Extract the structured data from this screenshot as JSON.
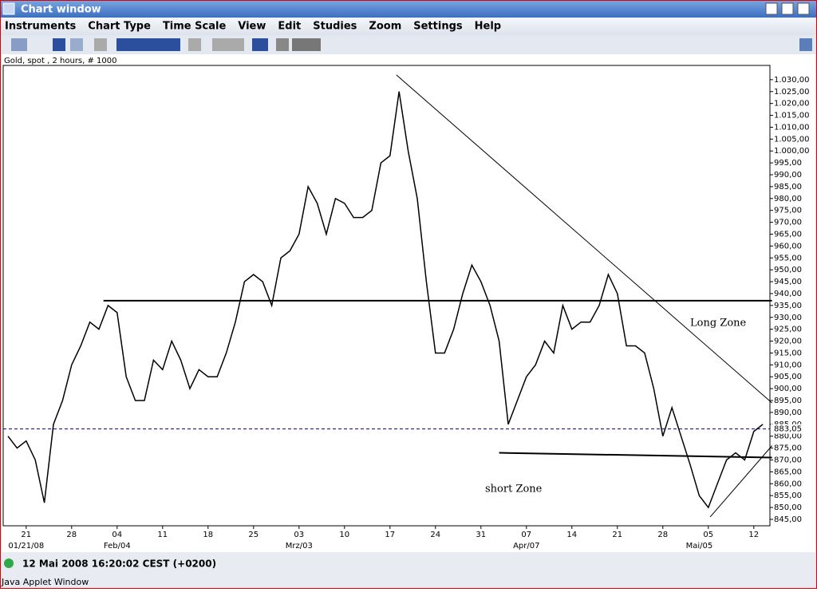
{
  "window": {
    "title": "Chart window",
    "menus": [
      "Instruments",
      "Chart Type",
      "Time Scale",
      "View",
      "Edit",
      "Studies",
      "Zoom",
      "Settings",
      "Help"
    ],
    "status": "12 Mai 2008 16:20:02  CEST (+0200)",
    "footer": "Java Applet Window"
  },
  "chart_data": {
    "type": "line",
    "title": "Gold, spot , 2 hours, # 1000",
    "color": "#000000",
    "categories": [
      null,
      null,
      "21",
      null,
      null,
      null,
      null,
      "28",
      null,
      null,
      null,
      null,
      "04",
      null,
      null,
      null,
      null,
      "11",
      null,
      null,
      null,
      null,
      "18",
      null,
      null,
      null,
      null,
      "25",
      null,
      null,
      null,
      null,
      "03",
      null,
      null,
      null,
      null,
      "10",
      null,
      null,
      null,
      null,
      "17",
      null,
      null,
      null,
      null,
      "24",
      null,
      null,
      null,
      null,
      "31",
      null,
      null,
      null,
      null,
      "07",
      null,
      null,
      null,
      null,
      "14",
      null,
      null,
      null,
      null,
      "21",
      null,
      null,
      null,
      null,
      "28",
      null,
      null,
      null,
      null,
      "05",
      null,
      null,
      null,
      null,
      "12",
      null
    ],
    "months": [
      null,
      null,
      "01/21/08",
      null,
      null,
      null,
      null,
      null,
      null,
      null,
      null,
      null,
      "Feb/04",
      null,
      null,
      null,
      null,
      null,
      null,
      null,
      null,
      null,
      null,
      null,
      null,
      null,
      null,
      null,
      null,
      null,
      null,
      null,
      "Mrz/03",
      null,
      null,
      null,
      null,
      null,
      null,
      null,
      null,
      null,
      null,
      null,
      null,
      null,
      null,
      null,
      null,
      null,
      null,
      null,
      null,
      null,
      null,
      null,
      null,
      "Apr/07",
      null,
      null,
      null,
      null,
      null,
      null,
      null,
      null,
      null,
      null,
      null,
      null,
      null,
      null,
      null,
      null,
      null,
      null,
      "Mai/05",
      null,
      null,
      null,
      null,
      null,
      null
    ],
    "values": [
      880,
      875,
      878,
      870,
      852,
      885,
      895,
      910,
      918,
      928,
      925,
      935,
      932,
      905,
      895,
      895,
      912,
      908,
      920,
      912,
      900,
      908,
      905,
      905,
      915,
      928,
      945,
      948,
      945,
      935,
      955,
      958,
      965,
      985,
      978,
      965,
      980,
      978,
      972,
      972,
      975,
      995,
      998,
      1025,
      1000,
      980,
      945,
      915,
      915,
      925,
      940,
      952,
      945,
      935,
      920,
      885,
      895,
      905,
      910,
      920,
      915,
      935,
      925,
      928,
      928,
      935,
      948,
      940,
      918,
      918,
      915,
      900,
      880,
      892,
      880,
      868,
      855,
      850,
      860,
      870,
      873,
      870,
      882,
      885
    ],
    "ylim": [
      842.3,
      1036
    ],
    "yticks": [
      {
        "value": 845,
        "label": "845,00"
      },
      {
        "value": 850,
        "label": "850,00"
      },
      {
        "value": 855,
        "label": "855,00"
      },
      {
        "value": 860,
        "label": "860,00"
      },
      {
        "value": 865,
        "label": "865,00"
      },
      {
        "value": 870,
        "label": "870,00"
      },
      {
        "value": 875,
        "label": "875,00"
      },
      {
        "value": 880,
        "label": "880,00"
      },
      {
        "value": 885,
        "label": "885,00"
      },
      {
        "value": 890,
        "label": "890,00"
      },
      {
        "value": 895,
        "label": "895,00"
      },
      {
        "value": 900,
        "label": "900,00"
      },
      {
        "value": 905,
        "label": "905,00"
      },
      {
        "value": 910,
        "label": "910,00"
      },
      {
        "value": 915,
        "label": "915,00"
      },
      {
        "value": 920,
        "label": "920,00"
      },
      {
        "value": 925,
        "label": "925,00"
      },
      {
        "value": 930,
        "label": "930,00"
      },
      {
        "value": 935,
        "label": "935,00"
      },
      {
        "value": 940,
        "label": "940,00"
      },
      {
        "value": 945,
        "label": "945,00"
      },
      {
        "value": 950,
        "label": "950,00"
      },
      {
        "value": 955,
        "label": "955,00"
      },
      {
        "value": 960,
        "label": "960,00"
      },
      {
        "value": 965,
        "label": "965,00"
      },
      {
        "value": 970,
        "label": "970,00"
      },
      {
        "value": 975,
        "label": "975,00"
      },
      {
        "value": 980,
        "label": "980,00"
      },
      {
        "value": 985,
        "label": "985,00"
      },
      {
        "value": 990,
        "label": "990,00"
      },
      {
        "value": 995,
        "label": "995,00"
      },
      {
        "value": 1000,
        "label": "1.000,00"
      },
      {
        "value": 1005,
        "label": "1.005,00"
      },
      {
        "value": 1010,
        "label": "1.010,00"
      },
      {
        "value": 1015,
        "label": "1.015,00"
      },
      {
        "value": 1020,
        "label": "1.020,00"
      },
      {
        "value": 1025,
        "label": "1.025,00"
      },
      {
        "value": 1030,
        "label": "1.030,00"
      }
    ],
    "last_price": {
      "value": 883.05,
      "label": "883,05"
    },
    "lines": [
      {
        "start": [
          10.5,
          937
        ],
        "end": [
          84,
          937
        ]
      },
      {
        "start": [
          54,
          873
        ],
        "end": [
          84,
          871
        ]
      },
      {
        "start": [
          42.7,
          1032
        ],
        "end": [
          84,
          894
        ]
      },
      {
        "start": [
          77.2,
          846
        ],
        "end": [
          84,
          876
        ]
      }
    ],
    "annotations": [
      "Long Zone",
      "short Zone"
    ]
  }
}
